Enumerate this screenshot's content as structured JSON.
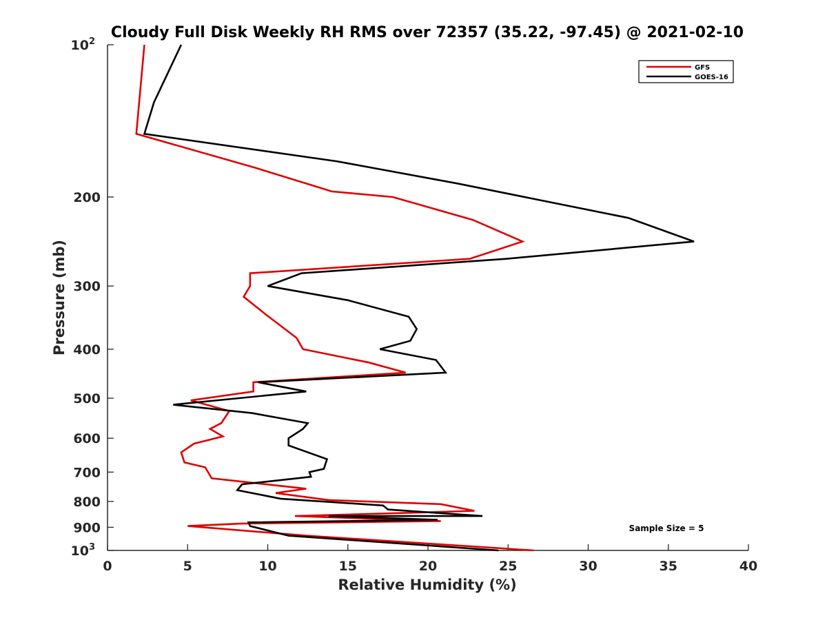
{
  "chart_data": {
    "type": "line",
    "title": "Cloudy Full Disk Weekly RH RMS over 72357 (35.22, -97.45) @ 2021-02-10",
    "xlabel": "Relative Humidity (%)",
    "ylabel": "Pressure (mb)",
    "xlim": [
      0,
      40
    ],
    "ylim": [
      100,
      1000
    ],
    "yscale": "log",
    "y_reversed": true,
    "grid": false,
    "legend_position": "top-right",
    "x_ticks": [
      {
        "value": 0,
        "label": "0"
      },
      {
        "value": 5,
        "label": "5"
      },
      {
        "value": 10,
        "label": "10"
      },
      {
        "value": 15,
        "label": "15"
      },
      {
        "value": 20,
        "label": "20"
      },
      {
        "value": 25,
        "label": "25"
      },
      {
        "value": 30,
        "label": "30"
      },
      {
        "value": 35,
        "label": "35"
      },
      {
        "value": 40,
        "label": "40"
      }
    ],
    "y_ticks": [
      {
        "value": 100,
        "label": "10",
        "sup": "2"
      },
      {
        "value": 200,
        "label": "200",
        "sup": ""
      },
      {
        "value": 300,
        "label": "300",
        "sup": ""
      },
      {
        "value": 400,
        "label": "400",
        "sup": ""
      },
      {
        "value": 500,
        "label": "500",
        "sup": ""
      },
      {
        "value": 600,
        "label": "600",
        "sup": ""
      },
      {
        "value": 700,
        "label": "700",
        "sup": ""
      },
      {
        "value": 800,
        "label": "800",
        "sup": ""
      },
      {
        "value": 900,
        "label": "900",
        "sup": ""
      },
      {
        "value": 1000,
        "label": "10",
        "sup": "3"
      }
    ],
    "annotation": "Sample Size = 5",
    "series": [
      {
        "name": "GFS",
        "color": "#e00000",
        "points": [
          [
            2.3,
            100
          ],
          [
            1.8,
            150
          ],
          [
            9.2,
            175
          ],
          [
            14,
            195
          ],
          [
            17.8,
            200
          ],
          [
            22.8,
            222
          ],
          [
            25.9,
            245
          ],
          [
            22.6,
            265
          ],
          [
            8.9,
            283
          ],
          [
            8.9,
            300
          ],
          [
            8.5,
            315
          ],
          [
            9.8,
            340
          ],
          [
            11.8,
            380
          ],
          [
            12.2,
            400
          ],
          [
            16.3,
            425
          ],
          [
            18.6,
            445
          ],
          [
            9.1,
            465
          ],
          [
            9.1,
            485
          ],
          [
            5.2,
            505
          ],
          [
            7.6,
            530
          ],
          [
            7.1,
            560
          ],
          [
            6.4,
            575
          ],
          [
            7.2,
            595
          ],
          [
            5.4,
            615
          ],
          [
            4.6,
            640
          ],
          [
            4.8,
            670
          ],
          [
            6.1,
            685
          ],
          [
            6.5,
            720
          ],
          [
            12.4,
            755
          ],
          [
            10.5,
            770
          ],
          [
            13.8,
            795
          ],
          [
            20.8,
            810
          ],
          [
            22.9,
            835
          ],
          [
            20.3,
            840
          ],
          [
            11.7,
            855
          ],
          [
            20.8,
            875
          ],
          [
            8.3,
            885
          ],
          [
            5,
            895
          ],
          [
            12.4,
            935
          ],
          [
            26.6,
            1000
          ]
        ]
      },
      {
        "name": "GOES-16",
        "color": "#000000",
        "points": [
          [
            4.6,
            100
          ],
          [
            2.9,
            130
          ],
          [
            2.3,
            150
          ],
          [
            14.3,
            170
          ],
          [
            21.8,
            188
          ],
          [
            32.5,
            220
          ],
          [
            36.6,
            245
          ],
          [
            24.9,
            265
          ],
          [
            12.1,
            283
          ],
          [
            10,
            300
          ],
          [
            15,
            320
          ],
          [
            18.8,
            345
          ],
          [
            19.3,
            365
          ],
          [
            18.9,
            385
          ],
          [
            17,
            400
          ],
          [
            20.5,
            420
          ],
          [
            21.1,
            445
          ],
          [
            9.4,
            465
          ],
          [
            12.4,
            485
          ],
          [
            4.1,
            515
          ],
          [
            9,
            535
          ],
          [
            12.5,
            560
          ],
          [
            12.2,
            575
          ],
          [
            11.3,
            600
          ],
          [
            11.3,
            620
          ],
          [
            13.7,
            660
          ],
          [
            13.5,
            690
          ],
          [
            12.6,
            700
          ],
          [
            12.7,
            715
          ],
          [
            8.4,
            740
          ],
          [
            8.1,
            760
          ],
          [
            10.8,
            790
          ],
          [
            17.2,
            815
          ],
          [
            17.5,
            830
          ],
          [
            23.4,
            855
          ],
          [
            13.8,
            855
          ],
          [
            20.6,
            870
          ],
          [
            8.8,
            880
          ],
          [
            8.9,
            895
          ],
          [
            11.3,
            935
          ],
          [
            24.4,
            1000
          ]
        ]
      }
    ]
  },
  "legend": {
    "entries": [
      {
        "label": "GFS",
        "color": "#e00000"
      },
      {
        "label": "GOES-16",
        "color": "#000000"
      }
    ]
  }
}
